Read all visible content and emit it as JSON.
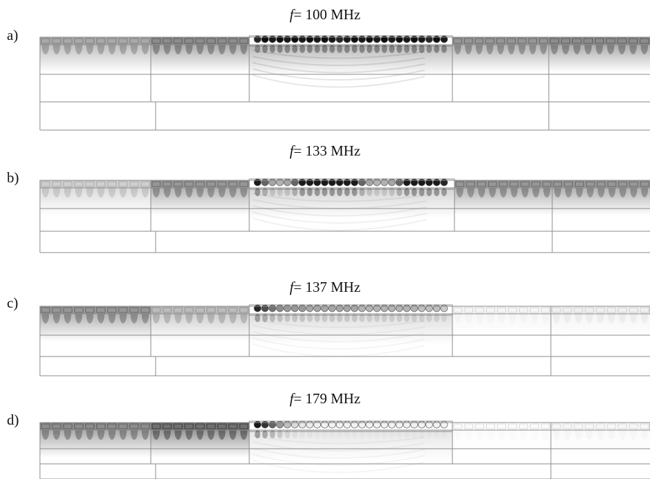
{
  "figure": {
    "panels": [
      {
        "label": "a)",
        "freq_symbol": "f",
        "freq_text": "= 100 MHz",
        "left_strip_intensity": 0.45,
        "left_strip2_intensity": 0.6,
        "center_pillar_tones": [
          0.85,
          0.95,
          0.9,
          0.95,
          0.9,
          0.95,
          0.9,
          0.95,
          0.9,
          0.95,
          0.9,
          0.85,
          0.9,
          0.95,
          0.9,
          0.95,
          0.9,
          0.95,
          0.9,
          0.95,
          0.9,
          0.95,
          0.9,
          0.85,
          0.95,
          0.9
        ],
        "right_strip_intensity": 0.55,
        "far_right_strip_intensity": 0.6,
        "center_field_intensity": 0.55
      },
      {
        "label": "b)",
        "freq_symbol": "f",
        "freq_text": "= 133 MHz",
        "left_strip_intensity": 0.25,
        "left_strip2_intensity": 0.55,
        "center_pillar_tones": [
          0.9,
          0.6,
          0.35,
          0.3,
          0.35,
          0.6,
          0.9,
          0.9,
          0.9,
          0.9,
          0.9,
          0.9,
          0.9,
          0.9,
          0.6,
          0.35,
          0.3,
          0.3,
          0.35,
          0.6,
          0.9,
          0.9,
          0.9,
          0.9,
          0.9,
          0.85
        ],
        "right_strip_intensity": 0.55,
        "far_right_strip_intensity": 0.55,
        "center_field_intensity": 0.35
      },
      {
        "label": "c)",
        "freq_symbol": "f",
        "freq_text": "= 137 MHz",
        "left_strip_intensity": 0.55,
        "left_strip2_intensity": 0.35,
        "center_pillar_tones": [
          0.85,
          0.7,
          0.55,
          0.45,
          0.4,
          0.4,
          0.4,
          0.35,
          0.35,
          0.35,
          0.35,
          0.35,
          0.35,
          0.35,
          0.3,
          0.3,
          0.3,
          0.3,
          0.3,
          0.3,
          0.3,
          0.3,
          0.25,
          0.25,
          0.25,
          0.2
        ],
        "right_strip_intensity": 0.05,
        "far_right_strip_intensity": 0.08,
        "center_field_intensity": 0.25
      },
      {
        "label": "d)",
        "freq_symbol": "f",
        "freq_text": "= 179 MHz",
        "left_strip_intensity": 0.6,
        "left_strip2_intensity": 0.75,
        "center_pillar_tones": [
          0.9,
          0.8,
          0.6,
          0.4,
          0.25,
          0.15,
          0.1,
          0.08,
          0.06,
          0.05,
          0.05,
          0.05,
          0.05,
          0.05,
          0.05,
          0.05,
          0.05,
          0.05,
          0.05,
          0.05,
          0.05,
          0.05,
          0.05,
          0.05,
          0.05,
          0.05
        ],
        "right_strip_intensity": 0.02,
        "far_right_strip_intensity": 0.04,
        "center_field_intensity": 0.2
      }
    ]
  }
}
